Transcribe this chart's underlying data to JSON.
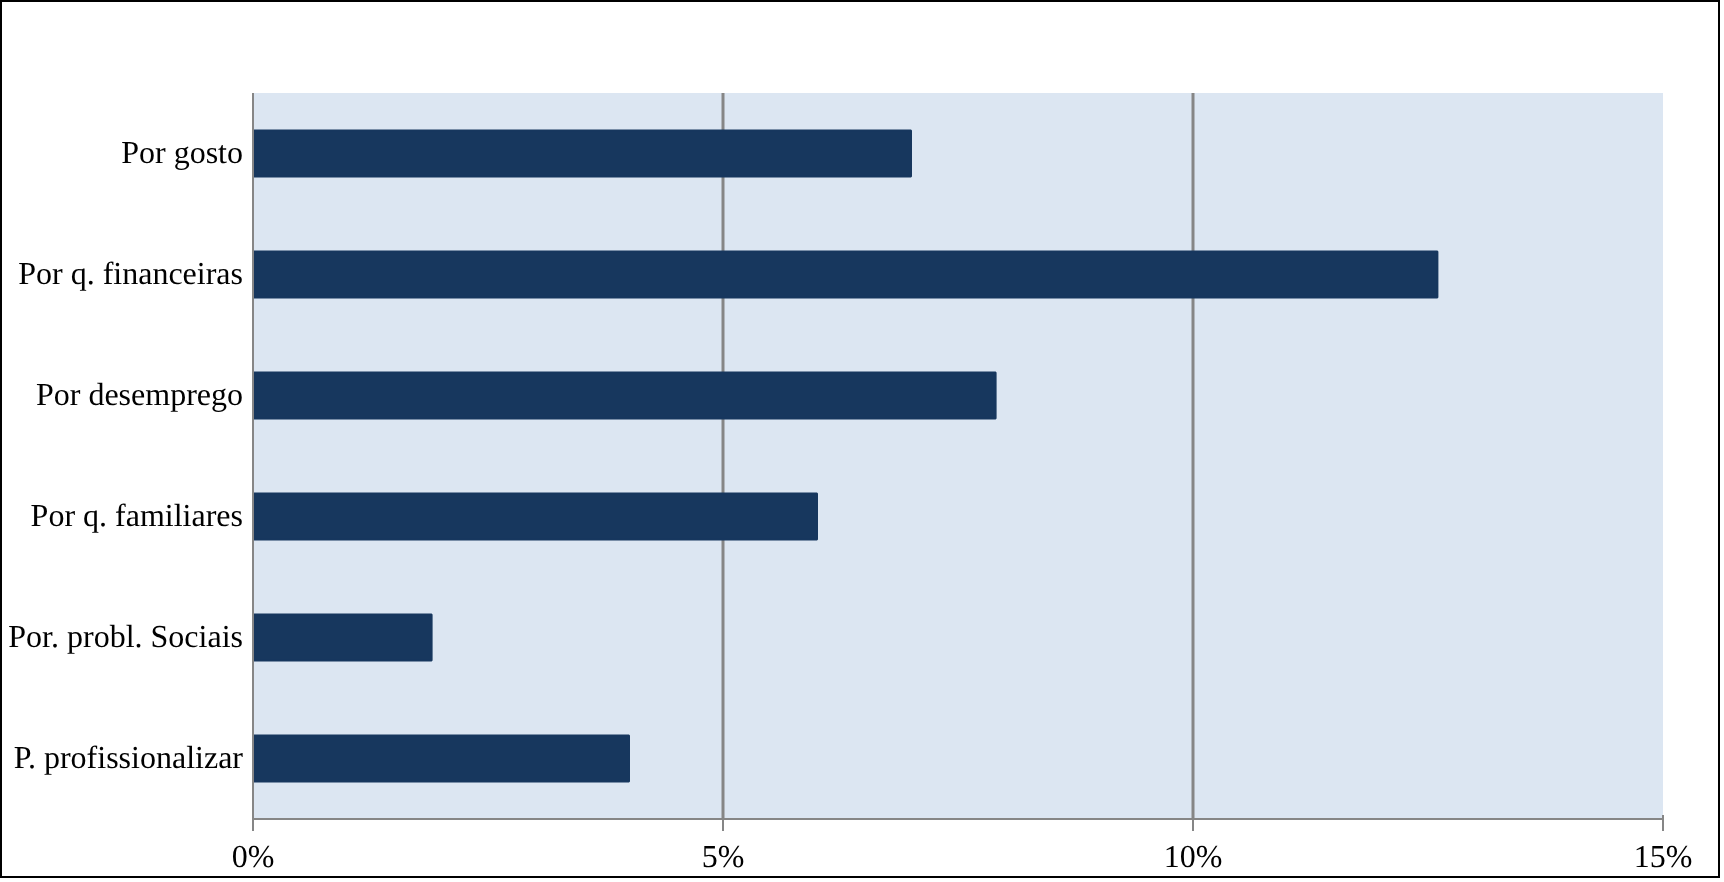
{
  "chart_data": {
    "type": "bar",
    "orientation": "horizontal",
    "categories": [
      "Por gosto",
      "Por q. financeiras",
      "Por desemprego",
      "Por q. familiares",
      "Por. probl. Sociais",
      "P. profissionalizar"
    ],
    "values": [
      7.0,
      12.6,
      7.9,
      6.0,
      1.9,
      4.0
    ],
    "color": "#17375e",
    "xlim": [
      0,
      15
    ],
    "xticks": [
      {
        "value": 0,
        "label": "0%"
      },
      {
        "value": 5,
        "label": "5%"
      },
      {
        "value": 10,
        "label": "10%"
      },
      {
        "value": 15,
        "label": "15%"
      }
    ],
    "grid": "x"
  }
}
